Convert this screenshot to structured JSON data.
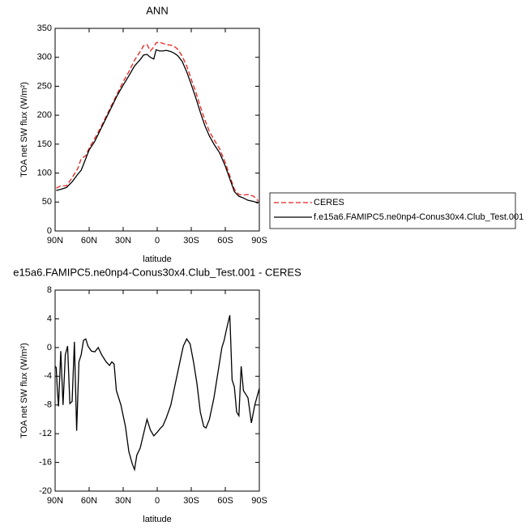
{
  "chart_data": [
    {
      "type": "line",
      "title": "ANN",
      "x_label": "latitude",
      "y_label": "TOA net SW flux (W/m²)",
      "xlim": [
        90,
        -90
      ],
      "xticks": [
        {
          "value": 90,
          "label": "90N"
        },
        {
          "value": 60,
          "label": "60N"
        },
        {
          "value": 30,
          "label": "30N"
        },
        0,
        {
          "value": -30,
          "label": "30S"
        },
        {
          "value": -60,
          "label": "60S"
        },
        {
          "value": -90,
          "label": "90S"
        }
      ],
      "ylim": [
        0,
        350
      ],
      "yticks": [
        0,
        50,
        100,
        150,
        200,
        250,
        300,
        350
      ],
      "legend": "right",
      "x": [
        89,
        85,
        80,
        75,
        70,
        67,
        63,
        60,
        55,
        50,
        45,
        40,
        35,
        30,
        25,
        20,
        15,
        12,
        9,
        6,
        3,
        1,
        -2,
        -5,
        -8,
        -12,
        -15,
        -18,
        -22,
        -26,
        -30,
        -34,
        -38,
        -42,
        -46,
        -50,
        -55,
        -60,
        -64,
        -68,
        -72,
        -76,
        -80,
        -85,
        -89
      ],
      "series": [
        {
          "name": "CERES",
          "color": "#e8201c",
          "line_style": "dashed",
          "values": [
            74,
            78,
            78,
            92,
            108,
            125,
            130,
            143,
            160,
            178,
            198,
            218,
            238,
            258,
            275,
            295,
            310,
            320,
            322,
            311,
            318,
            325,
            326,
            324,
            322,
            321,
            319,
            314,
            302,
            285,
            262,
            240,
            215,
            192,
            172,
            158,
            142,
            118,
            95,
            72,
            63,
            62,
            63,
            60,
            52
          ]
        },
        {
          "name": "f.e15a6.FAMIPC5.ne0np4-Conus30x4.Club_Test.001",
          "color": "#000000",
          "line_style": "solid",
          "values": [
            70,
            72,
            75,
            85,
            98,
            105,
            125,
            140,
            155,
            175,
            195,
            215,
            235,
            252,
            268,
            285,
            296,
            304,
            305,
            300,
            297,
            313,
            311,
            311,
            312,
            310,
            307,
            303,
            293,
            275,
            253,
            230,
            205,
            182,
            164,
            150,
            135,
            112,
            90,
            68,
            60,
            57,
            53,
            51,
            48
          ]
        }
      ]
    },
    {
      "type": "line",
      "title": "e15a6.FAMIPC5.ne0np4-Conus30x4.Club_Test.001 - CERES",
      "x_label": "latitude",
      "y_label": "TOA net SW flux (W/m²)",
      "xlim": [
        90,
        -90
      ],
      "xticks": [
        {
          "value": 90,
          "label": "90N"
        },
        {
          "value": 60,
          "label": "60N"
        },
        {
          "value": 30,
          "label": "30N"
        },
        0,
        {
          "value": -30,
          "label": "30S"
        },
        {
          "value": -60,
          "label": "60S"
        },
        {
          "value": -90,
          "label": "90S"
        }
      ],
      "ylim": [
        -20,
        8
      ],
      "yticks": [
        -20,
        -16,
        -12,
        -8,
        -4,
        0,
        4,
        8
      ],
      "x": [
        90,
        89,
        88,
        87,
        85,
        83,
        81,
        79,
        77,
        75,
        73,
        71,
        69,
        67,
        65,
        63,
        61,
        58,
        55,
        52,
        49,
        45,
        42,
        40,
        38,
        36,
        32,
        28,
        25,
        22,
        20,
        18,
        15,
        12,
        9,
        6,
        3,
        0,
        -3,
        -5,
        -8,
        -12,
        -16,
        -20,
        -23,
        -26,
        -29,
        -32,
        -35,
        -38,
        -41,
        -43,
        -46,
        -50,
        -54,
        -57,
        -59,
        -61,
        -64,
        -66,
        -68,
        -70,
        -72,
        -74,
        -76,
        -78,
        -80,
        -83,
        -86,
        -90
      ],
      "series": [
        {
          "color": "#000000",
          "line_style": "solid",
          "values": [
            -2.6,
            -2.8,
            -6,
            -8.2,
            -0.5,
            -8,
            -1,
            0.2,
            -7.8,
            -7.5,
            0.8,
            -11.6,
            -2,
            -1,
            1,
            1.2,
            0.2,
            -0.5,
            -0.6,
            0,
            -1,
            -2,
            -2.5,
            -2,
            -2.3,
            -6,
            -8,
            -11,
            -14.5,
            -16.2,
            -17,
            -15,
            -14,
            -12,
            -10,
            -11.5,
            -12.3,
            -11.8,
            -11.2,
            -10.9,
            -9.8,
            -8,
            -5,
            -2,
            0.2,
            1.2,
            0.5,
            -2,
            -5,
            -9,
            -11,
            -11.2,
            -10,
            -7,
            -3,
            0,
            1,
            2.5,
            4.5,
            -4.5,
            -5.5,
            -9,
            -9.5,
            -2.6,
            -6,
            -6.5,
            -7,
            -10.5,
            -8,
            -5.7
          ]
        }
      ]
    }
  ]
}
